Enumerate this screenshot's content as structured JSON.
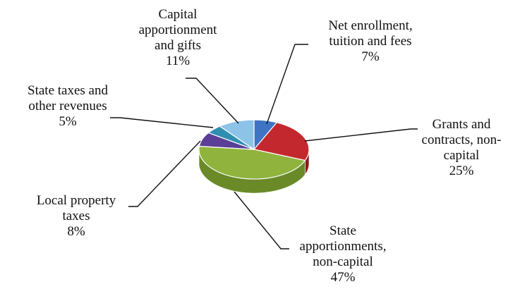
{
  "chart_data": {
    "type": "pie",
    "style": "3d",
    "slices": [
      {
        "label_lines": [
          "Net enrollment,",
          "tuition and fees"
        ],
        "pct_text": "7%",
        "value": 7,
        "color": "#3f74c4",
        "side_color": "#2a5496"
      },
      {
        "label_lines": [
          "Grants and",
          "contracts, non-",
          "capital"
        ],
        "pct_text": "25%",
        "value": 25,
        "color": "#c3282e",
        "side_color": "#8e1a1e"
      },
      {
        "label_lines": [
          "State",
          "apportionments,",
          "non-capital"
        ],
        "pct_text": "47%",
        "value": 47,
        "color": "#8fb33d",
        "side_color": "#6a8a28"
      },
      {
        "label_lines": [
          "Local property",
          "taxes"
        ],
        "pct_text": "8%",
        "value": 8,
        "color": "#5a3e98",
        "side_color": "#3f2a70"
      },
      {
        "label_lines": [
          "State taxes and",
          "other revenues"
        ],
        "pct_text": "5%",
        "value": 5,
        "color": "#2f8fb0",
        "side_color": "#1f6a85"
      },
      {
        "label_lines": [
          "Capital",
          "apportionment",
          "and gifts"
        ],
        "pct_text": "11%",
        "value": 11,
        "color": "#8ec3e8",
        "side_color": "#6a9cc0"
      }
    ]
  }
}
